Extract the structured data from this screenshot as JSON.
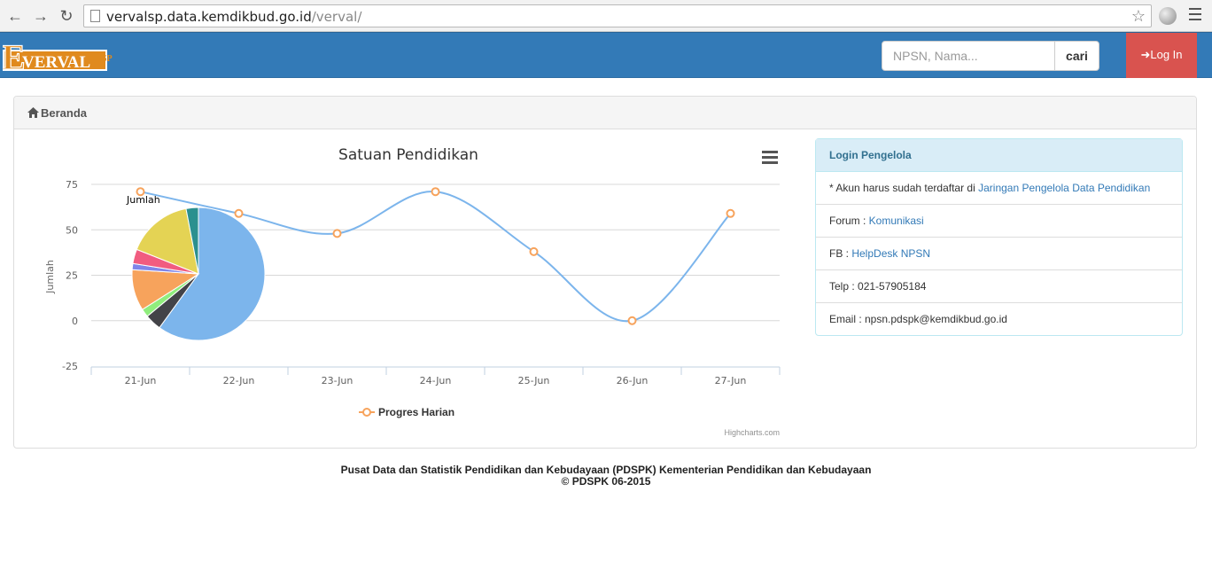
{
  "browser": {
    "url_host": "vervalsp.data.kemdikbud.go.id",
    "url_path": "/verval/"
  },
  "navbar": {
    "search_placeholder": "NPSN, Nama...",
    "search_button": "cari",
    "login_label": "Log In"
  },
  "breadcrumb": {
    "home": "Beranda"
  },
  "chart_data": {
    "type": "line",
    "title": "Satuan Pendidikan",
    "ylabel": "Jumlah",
    "xlabel": "",
    "x": [
      "21-Jun",
      "22-Jun",
      "23-Jun",
      "24-Jun",
      "25-Jun",
      "26-Jun",
      "27-Jun"
    ],
    "yticks": [
      75,
      50,
      25,
      0,
      -25
    ],
    "ylim": [
      -25,
      75
    ],
    "grid": true,
    "legend_position": "bottom-center",
    "series": [
      {
        "name": "Progres Harian",
        "values": [
          71,
          59,
          48,
          71,
          38,
          0,
          59
        ],
        "color": "#7cb5ec",
        "marker": "#f7a35c"
      }
    ],
    "pie": {
      "name": "Jumlah",
      "values": [
        60,
        4,
        2,
        10,
        1.5,
        3.5,
        16,
        3
      ],
      "colors": [
        "#7cb5ec",
        "#434348",
        "#90ed7d",
        "#f7a35c",
        "#8085e9",
        "#f15c80",
        "#e4d354",
        "#2b908f"
      ]
    },
    "credit": "Highcharts.com"
  },
  "sidebar": {
    "heading": "Login Pengelola",
    "items": [
      {
        "prefix": "* Akun harus sudah terdaftar di ",
        "link": "Jaringan Pengelola Data Pendidikan"
      },
      {
        "prefix": "Forum : ",
        "link": "Komunikasi"
      },
      {
        "prefix": "FB : ",
        "link": "HelpDesk NPSN"
      },
      {
        "prefix": "Telp : 021-57905184",
        "link": ""
      },
      {
        "prefix": "Email : npsn.pdspk@kemdikbud.go.id",
        "link": ""
      }
    ]
  },
  "footer": {
    "line1": "Pusat Data dan Statistik Pendidikan dan Kebudayaan (PDSPK) Kementerian Pendidikan dan Kebudayaan",
    "line2": "© PDSPK 06-2015"
  },
  "logo": {
    "text": "VERVAL",
    "sup": "SP",
    "initial": "E"
  },
  "colors": {
    "navbar": "#337ab7",
    "login": "#d9534f",
    "accent": "#f7a35c"
  }
}
